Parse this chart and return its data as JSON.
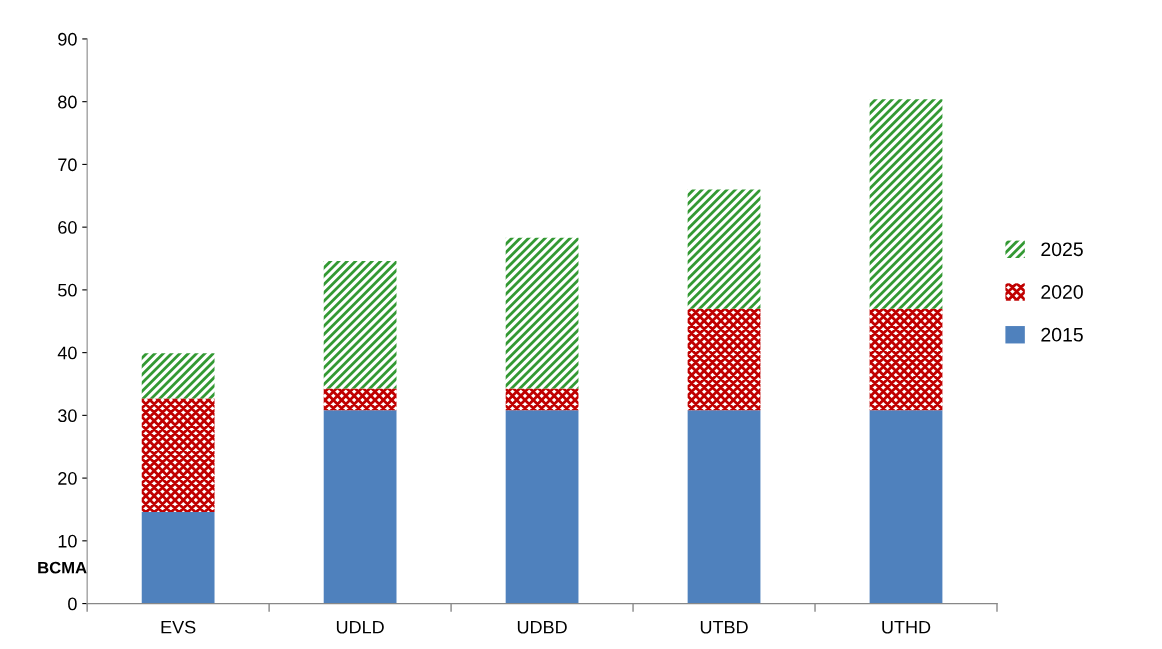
{
  "chart_data": {
    "type": "bar",
    "stacked": true,
    "ylabel": "BCMA",
    "categories": [
      "EVS",
      "UDLD",
      "UDBD",
      "UTBD",
      "UTHD"
    ],
    "series": [
      {
        "name": "2015",
        "color": "#4f81bd",
        "values": [
          14.6,
          30.8,
          30.8,
          30.8,
          30.8
        ]
      },
      {
        "name": "2020",
        "color": "#c00000",
        "values": [
          18.1,
          3.5,
          3.5,
          16.2,
          16.2
        ]
      },
      {
        "name": "2025",
        "color": "#339933",
        "values": [
          7.2,
          20.3,
          24.0,
          19.0,
          33.4
        ]
      }
    ],
    "ylim": [
      0,
      90
    ],
    "yticks": [
      0,
      10,
      20,
      30,
      40,
      50,
      60,
      70,
      80,
      90
    ],
    "grid": false,
    "legend": "right"
  }
}
